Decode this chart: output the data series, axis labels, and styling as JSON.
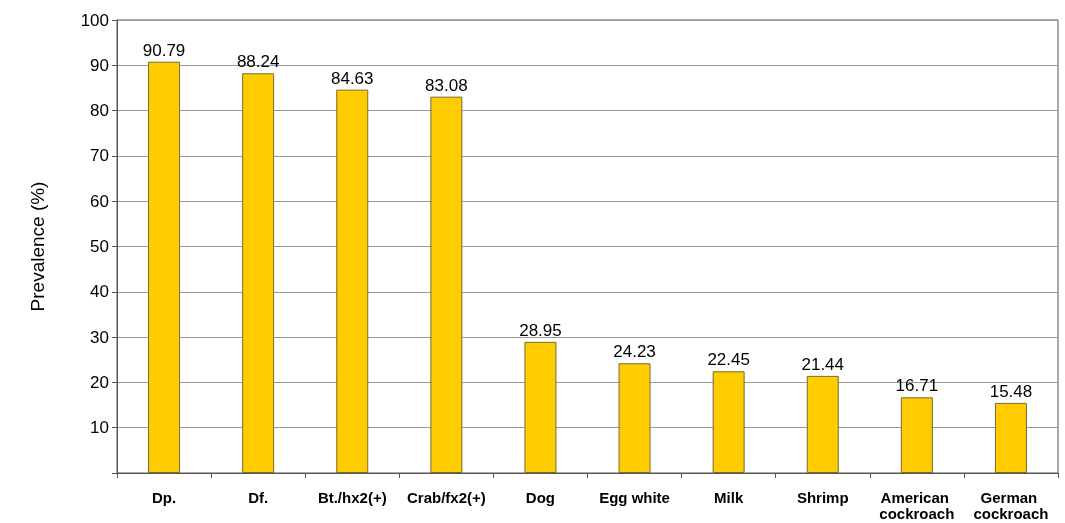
{
  "chart_data": {
    "type": "bar",
    "ylabel": "Prevalence (%)",
    "categories": [
      "Dp.",
      "Df.",
      "Bt./hx2(+)",
      "Crab/fx2(+)",
      "Dog",
      "Egg white",
      "Milk",
      "Shrimp",
      "American cockroach",
      "German cockroach"
    ],
    "values": [
      90.79,
      88.24,
      84.63,
      83.08,
      28.95,
      24.23,
      22.45,
      21.44,
      16.71,
      15.48
    ],
    "color": "#ffcc00",
    "ylim": [
      0,
      100
    ],
    "yticks": [
      {
        "value": 0,
        "label": null
      },
      10,
      20,
      30,
      40,
      50,
      60,
      70,
      80,
      90,
      100
    ],
    "grid": "y",
    "data_labels": true
  }
}
